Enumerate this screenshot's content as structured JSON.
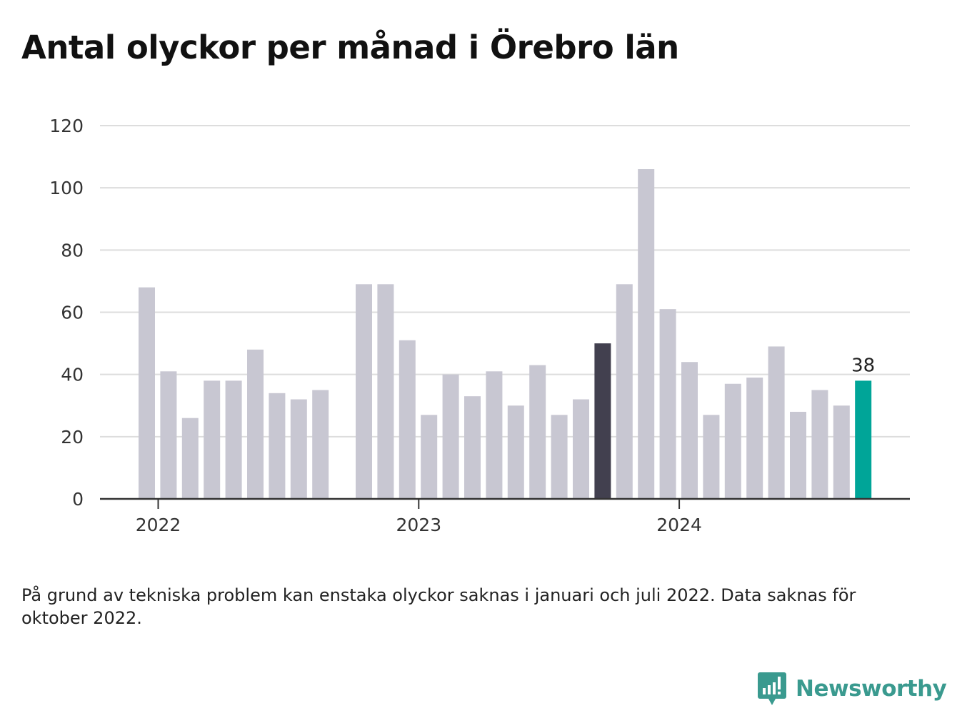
{
  "title": "Antal olyckor per månad i Örebro län",
  "note": "På grund av tekniska problem kan enstaka olyckor saknas i januari och juli 2022. Data saknas för oktober 2022.",
  "brand": {
    "name": "Newsworthy",
    "icon": "newsworthy-logo-icon",
    "color": "#3a9a8f"
  },
  "chart_data": {
    "type": "bar",
    "x": [
      "2022-01",
      "2022-02",
      "2022-03",
      "2022-04",
      "2022-05",
      "2022-06",
      "2022-07",
      "2022-08",
      "2022-09",
      "2022-10",
      "2022-11",
      "2022-12",
      "2023-01",
      "2023-02",
      "2023-03",
      "2023-04",
      "2023-05",
      "2023-06",
      "2023-07",
      "2023-08",
      "2023-09",
      "2023-10",
      "2023-11",
      "2023-12",
      "2024-01",
      "2024-02",
      "2024-03",
      "2024-04",
      "2024-05",
      "2024-06",
      "2024-07",
      "2024-08",
      "2024-09",
      "2024-10"
    ],
    "values": [
      68,
      41,
      26,
      38,
      38,
      48,
      34,
      32,
      35,
      null,
      69,
      69,
      51,
      27,
      40,
      33,
      41,
      30,
      43,
      27,
      32,
      50,
      69,
      106,
      61,
      44,
      27,
      37,
      39,
      49,
      28,
      35,
      30,
      38
    ],
    "x_tick_labels": [
      "2022",
      "2023",
      "2024"
    ],
    "y_ticks": [
      0,
      20,
      40,
      60,
      80,
      100,
      120
    ],
    "ylim": [
      0,
      120
    ],
    "grid": true,
    "highlight": {
      "same_month_last_year": "2023-10",
      "latest": "2024-10"
    },
    "data_labels": [
      {
        "x": "2024-10",
        "text": "38"
      }
    ],
    "colors": {
      "default": "#c8c7d2",
      "same_month_last_year": "#42404f",
      "latest": "#00a598",
      "grid": "#dddddd",
      "axis": "#333333",
      "tick_text": "#333333"
    }
  }
}
